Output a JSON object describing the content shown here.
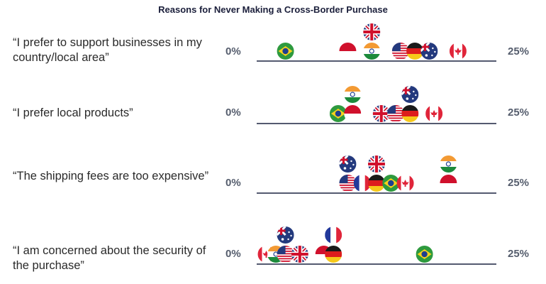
{
  "chart_data": {
    "type": "scatter",
    "title": "Reasons for Never Making a Cross-Border Purchase",
    "xlim": [
      0,
      25
    ],
    "tick_min_label": "0%",
    "tick_max_label": "25%",
    "rows": [
      {
        "label": "“I prefer to support businesses in my country/local area”",
        "points": [
          {
            "country": "brazil",
            "value": 3.0
          },
          {
            "country": "indonesia",
            "value": 9.5
          },
          {
            "country": "india",
            "value": 12.0
          },
          {
            "country": "uk",
            "value": 12.0
          },
          {
            "country": "usa",
            "value": 15.0
          },
          {
            "country": "germany",
            "value": 16.5
          },
          {
            "country": "australia",
            "value": 18.0
          },
          {
            "country": "canada",
            "value": 21.0
          }
        ]
      },
      {
        "label": "“I prefer local products”",
        "points": [
          {
            "country": "brazil",
            "value": 8.5
          },
          {
            "country": "indonesia",
            "value": 10.0
          },
          {
            "country": "india",
            "value": 10.0
          },
          {
            "country": "uk",
            "value": 13.0
          },
          {
            "country": "usa",
            "value": 14.5
          },
          {
            "country": "germany",
            "value": 16.0
          },
          {
            "country": "australia",
            "value": 16.0
          },
          {
            "country": "canada",
            "value": 18.5
          }
        ]
      },
      {
        "label": "“The shipping fees are too expensive”",
        "points": [
          {
            "country": "usa",
            "value": 9.5
          },
          {
            "country": "australia",
            "value": 9.5
          },
          {
            "country": "france",
            "value": 11.0
          },
          {
            "country": "germany",
            "value": 12.5
          },
          {
            "country": "uk",
            "value": 12.5
          },
          {
            "country": "brazil",
            "value": 14.0
          },
          {
            "country": "canada",
            "value": 15.5
          },
          {
            "country": "indonesia",
            "value": 20.0
          },
          {
            "country": "india",
            "value": 20.0
          }
        ]
      },
      {
        "label": "“I am concerned about the security of the purchase”",
        "points": [
          {
            "country": "canada",
            "value": 1.0
          },
          {
            "country": "india",
            "value": 2.0
          },
          {
            "country": "usa",
            "value": 3.0
          },
          {
            "country": "australia",
            "value": 3.0
          },
          {
            "country": "uk",
            "value": 4.5
          },
          {
            "country": "indonesia",
            "value": 7.0
          },
          {
            "country": "germany",
            "value": 8.0
          },
          {
            "country": "france",
            "value": 8.0
          },
          {
            "country": "brazil",
            "value": 17.5
          }
        ]
      }
    ]
  },
  "colors": {
    "axis_line": "#1b2340",
    "title": "#1b1f3b",
    "label": "#2a2a2a",
    "tick": "#555d6d"
  }
}
